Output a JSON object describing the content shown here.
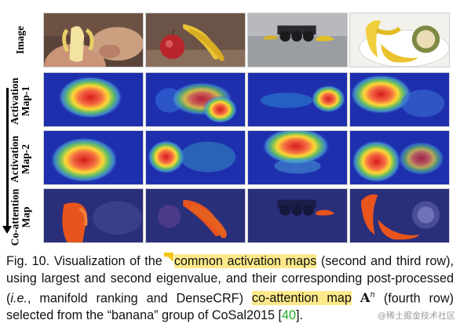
{
  "figure": {
    "row_labels": {
      "row1": [
        "Image"
      ],
      "row2": [
        "Activation",
        "Map-1"
      ],
      "row3": [
        "Activation",
        "Map-2"
      ],
      "row4": [
        "Co-attention",
        "Map"
      ]
    }
  },
  "caption": {
    "fig_label": "Fig. 10.",
    "part1": "Visualization of the",
    "hl1": "common activation maps",
    "part2": "(second and third row), using largest and second eigenvalue, and their corresponding post-processed (",
    "ie": "i.e.",
    "part3": ", manifold ranking and DenseCRF)",
    "hl2": "co-attention map",
    "math_symbol": "A",
    "math_sup": "n",
    "part4": "(fourth row) selected from the “banana” group of CoSal2015 [",
    "cite": "40",
    "part5": "]."
  },
  "watermark": "@稀土掘金技术社区",
  "colors": {
    "highlight": "#fde98a",
    "citation": "#1fa81f",
    "heat_low": "#1e2fae",
    "heat_high": "#d7191c",
    "coatt_fg": "#e8541c"
  }
}
